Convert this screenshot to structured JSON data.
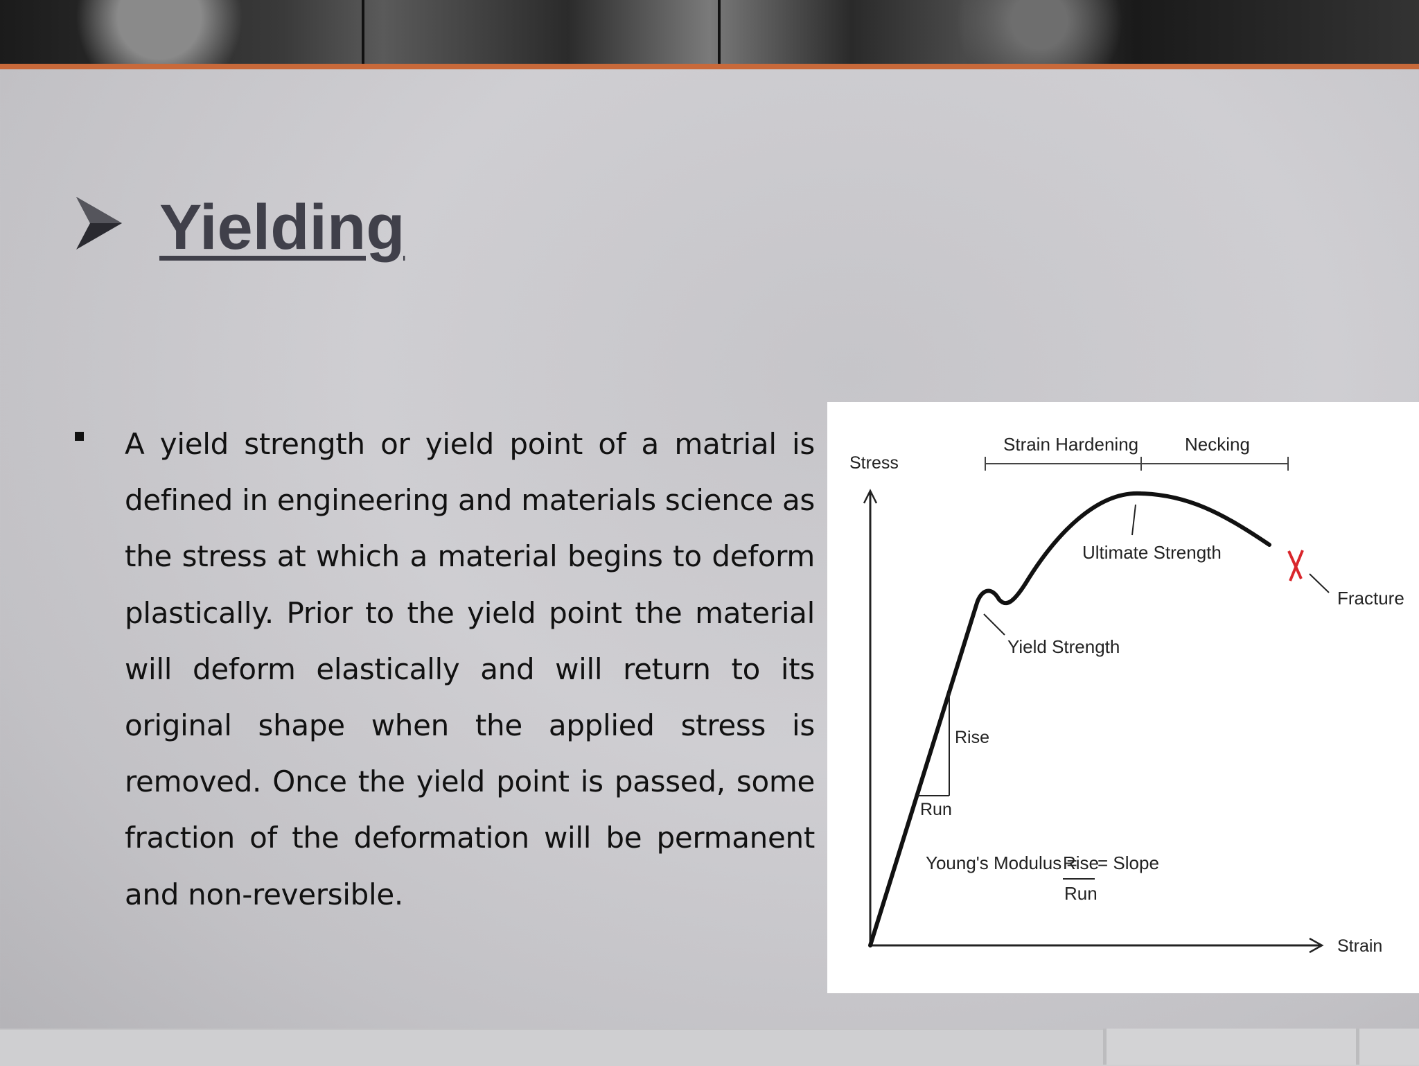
{
  "slide": {
    "title": "Yielding",
    "title_bullet_icon": "arrow-bullet-icon",
    "bullet_icon": "square-bullet-icon",
    "body": "A yield strength or yield point of a matrial is defined in engineering and materials science as the stress at which a material begins to deform plastically. Prior to the yield point the material will deform elastically and will return to its original shape when the applied stress is removed. Once the yield point is passed, some fraction of the deformation will be permanent and non-reversible."
  },
  "figure": {
    "y_axis_label": "Stress",
    "x_axis_label": "Strain",
    "region_strain_hardening": "Strain Hardening",
    "region_necking": "Necking",
    "label_ultimate_strength": "Ultimate Strength",
    "label_fracture": "Fracture",
    "label_yield_strength": "Yield Strength",
    "label_rise": "Rise",
    "label_run": "Run",
    "formula_lhs": "Young's Modulus = ",
    "formula_numerator": "Rise",
    "formula_equals_slope": " = Slope",
    "formula_denominator": "Run"
  },
  "colors": {
    "accent_rule": "#c8693a",
    "title": "#40404a",
    "fracture_mark": "#d9262c"
  }
}
